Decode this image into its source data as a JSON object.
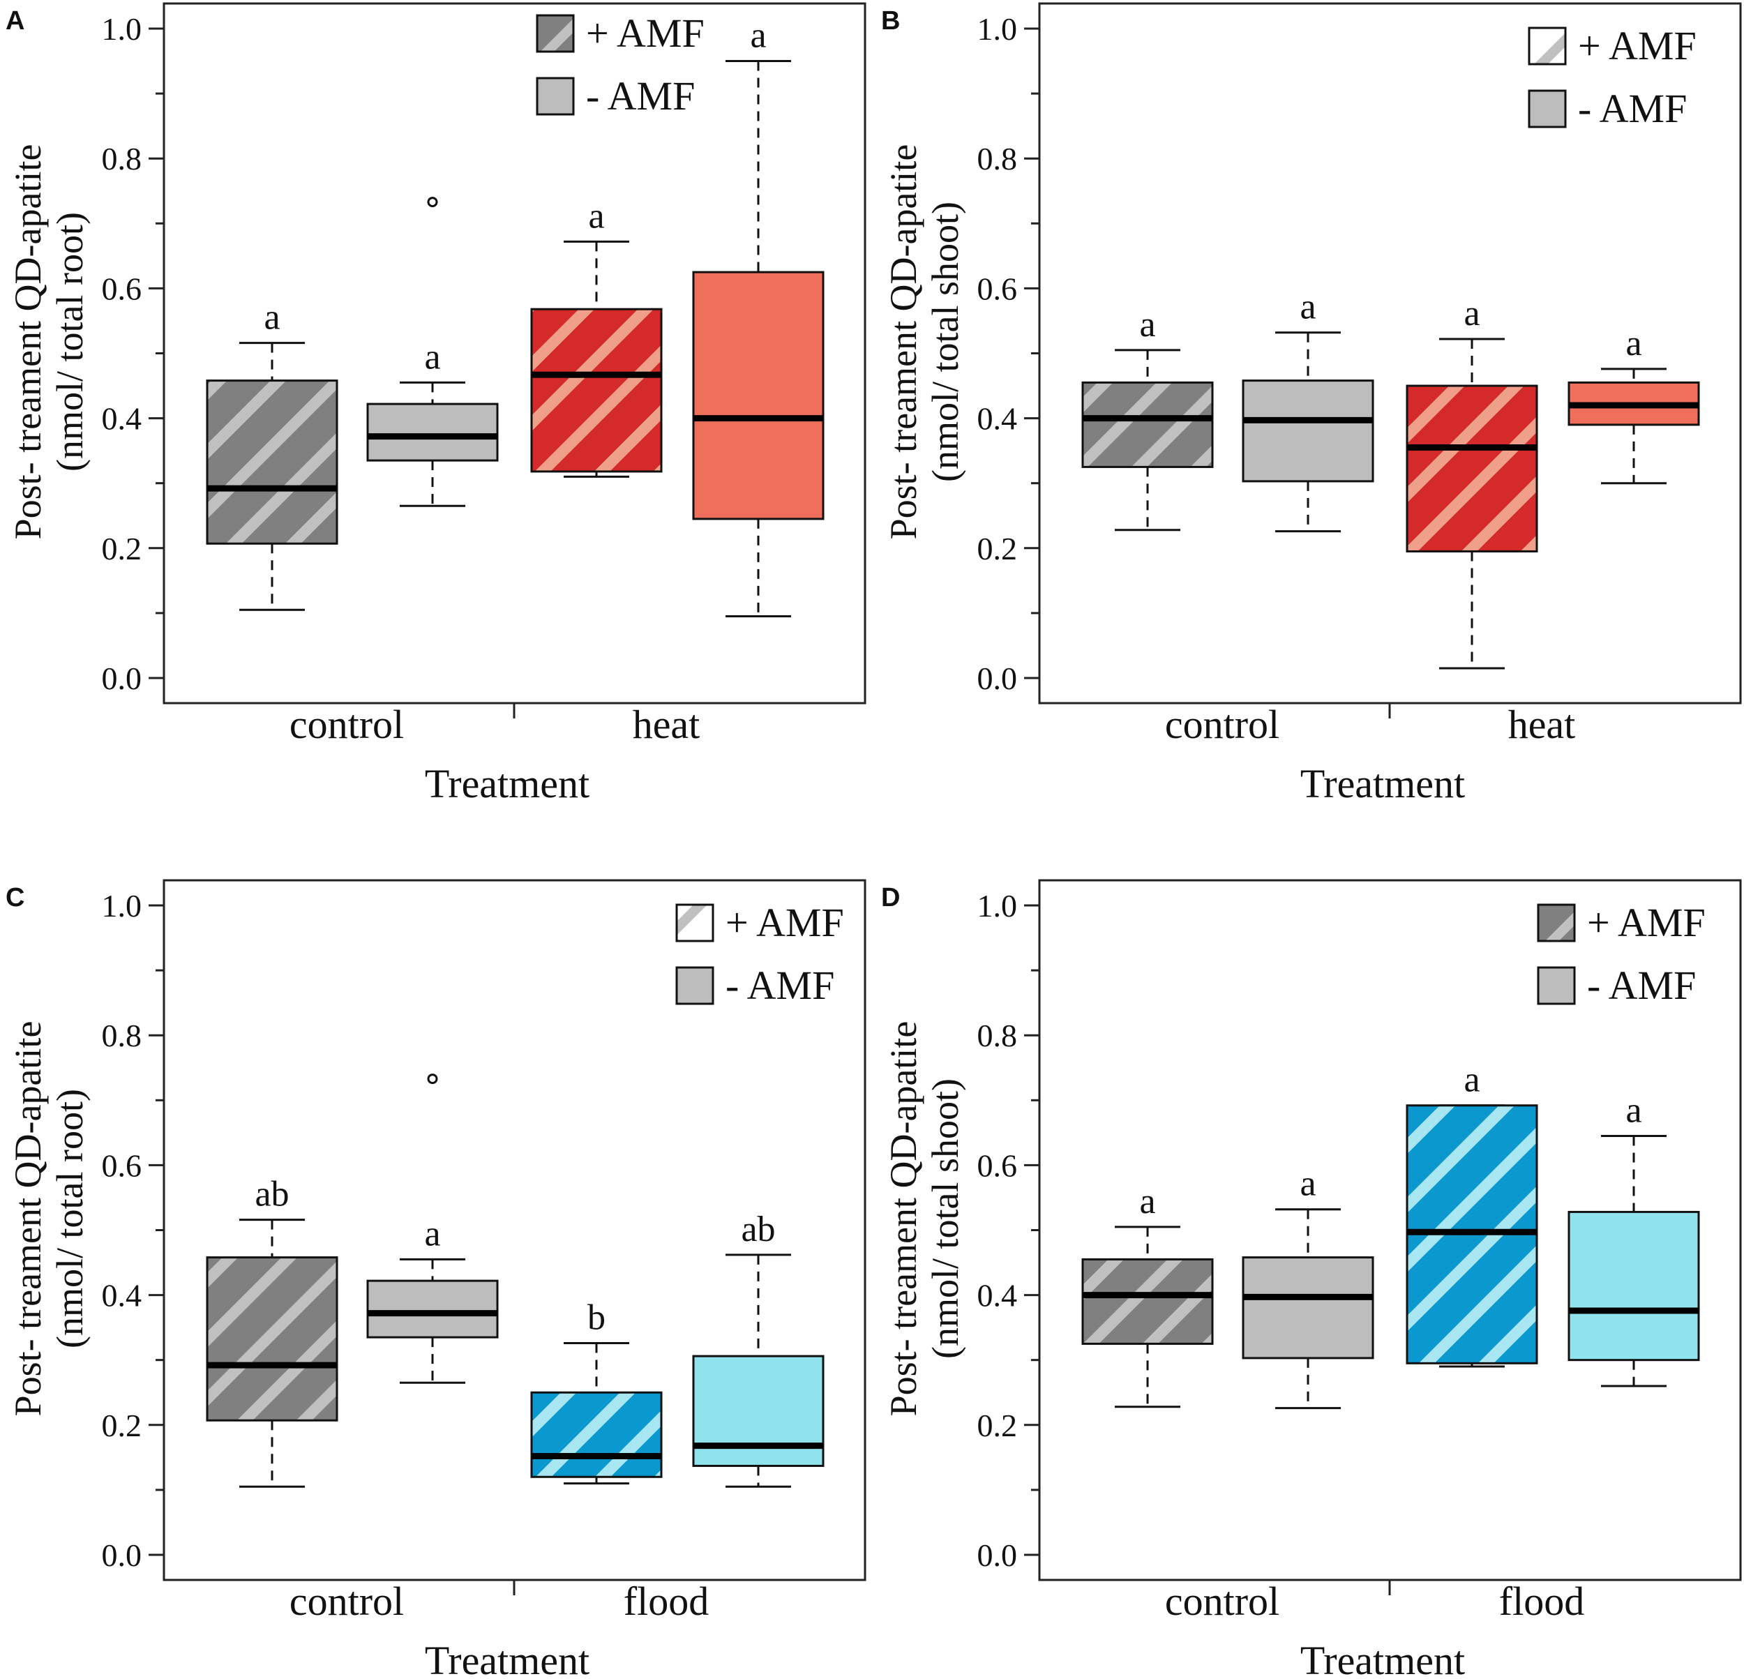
{
  "colors": {
    "control_amf": "#808080",
    "control_amf_stripe": "#c0c0c0",
    "control_noamf": "#bdbdbd",
    "heat_amf": "#d42a2a",
    "heat_amf_stripe": "#f0a08a",
    "heat_noamf": "#ef6f5a",
    "flood_amf": "#0a98cf",
    "flood_amf_stripe": "#a8e6f2",
    "flood_noamf": "#90e2ec"
  },
  "chart_data": [
    {
      "panel": "A",
      "type": "box",
      "xlabel": "Treatment",
      "ylabel_line1": "Post- treament QD-apatite",
      "ylabel_line2": "(nmol/ total root)",
      "ylim": [
        0,
        1.0
      ],
      "yticks": [
        "0.0",
        "0.2",
        "0.4",
        "0.6",
        "0.8",
        "1.0"
      ],
      "categories": [
        "control",
        "heat"
      ],
      "legend": {
        "position": "top-left",
        "swatch": "dark",
        "items": [
          "+ AMF",
          "- AMF"
        ]
      },
      "boxes": [
        {
          "group": "control",
          "amf": "+ AMF",
          "whisker_low": 0.105,
          "q1": 0.207,
          "median": 0.292,
          "q3": 0.458,
          "whisker_high": 0.516,
          "outliers": [],
          "letter": "a",
          "fill": "control_amf",
          "stripe": "control_amf_stripe",
          "hatched": true
        },
        {
          "group": "control",
          "amf": "- AMF",
          "whisker_low": 0.265,
          "q1": 0.335,
          "median": 0.372,
          "q3": 0.422,
          "whisker_high": 0.455,
          "outliers": [
            0.733
          ],
          "letter": "a",
          "fill": "control_noamf",
          "hatched": false
        },
        {
          "group": "heat",
          "amf": "+ AMF",
          "whisker_low": 0.31,
          "q1": 0.318,
          "median": 0.467,
          "q3": 0.568,
          "whisker_high": 0.672,
          "outliers": [],
          "letter": "a",
          "fill": "heat_amf",
          "stripe": "heat_amf_stripe",
          "hatched": true
        },
        {
          "group": "heat",
          "amf": "- AMF",
          "whisker_low": 0.095,
          "q1": 0.245,
          "median": 0.4,
          "q3": 0.625,
          "whisker_high": 0.95,
          "outliers": [],
          "letter": "a",
          "fill": "heat_noamf",
          "hatched": false
        }
      ]
    },
    {
      "panel": "B",
      "type": "box",
      "xlabel": "Treatment",
      "ylabel_line1": "Post- treament QD-apatite",
      "ylabel_line2": "(nmol/ total shoot)",
      "ylim": [
        0,
        1.0
      ],
      "yticks": [
        "0.0",
        "0.2",
        "0.4",
        "0.6",
        "0.8",
        "1.0"
      ],
      "categories": [
        "control",
        "heat"
      ],
      "legend": {
        "position": "top-right",
        "swatch": "light",
        "items": [
          "+ AMF",
          "- AMF"
        ]
      },
      "boxes": [
        {
          "group": "control",
          "amf": "+ AMF",
          "whisker_low": 0.228,
          "q1": 0.325,
          "median": 0.4,
          "q3": 0.455,
          "whisker_high": 0.505,
          "outliers": [],
          "letter": "a",
          "fill": "control_amf",
          "stripe": "control_amf_stripe",
          "hatched": true
        },
        {
          "group": "control",
          "amf": "- AMF",
          "whisker_low": 0.226,
          "q1": 0.303,
          "median": 0.397,
          "q3": 0.458,
          "whisker_high": 0.532,
          "outliers": [],
          "letter": "a",
          "fill": "control_noamf",
          "hatched": false
        },
        {
          "group": "heat",
          "amf": "+ AMF",
          "whisker_low": 0.015,
          "q1": 0.195,
          "median": 0.355,
          "q3": 0.45,
          "whisker_high": 0.522,
          "outliers": [],
          "letter": "a",
          "fill": "heat_amf",
          "stripe": "heat_amf_stripe",
          "hatched": true
        },
        {
          "group": "heat",
          "amf": "- AMF",
          "whisker_low": 0.3,
          "q1": 0.39,
          "median": 0.42,
          "q3": 0.455,
          "whisker_high": 0.476,
          "outliers": [],
          "letter": "a",
          "fill": "heat_noamf",
          "hatched": false
        }
      ]
    },
    {
      "panel": "C",
      "type": "box",
      "xlabel": "Treatment",
      "ylabel_line1": "Post- treament QD-apatite",
      "ylabel_line2": "(nmol/ total root)",
      "ylim": [
        0,
        1.0
      ],
      "yticks": [
        "0.0",
        "0.2",
        "0.4",
        "0.6",
        "0.8",
        "1.0"
      ],
      "categories": [
        "control",
        "flood"
      ],
      "legend": {
        "position": "top-right",
        "swatch": "light",
        "items": [
          "+ AMF",
          "- AMF"
        ]
      },
      "boxes": [
        {
          "group": "control",
          "amf": "+ AMF",
          "whisker_low": 0.105,
          "q1": 0.207,
          "median": 0.292,
          "q3": 0.458,
          "whisker_high": 0.516,
          "outliers": [],
          "letter": "ab",
          "fill": "control_amf",
          "stripe": "control_amf_stripe",
          "hatched": true
        },
        {
          "group": "control",
          "amf": "- AMF",
          "whisker_low": 0.265,
          "q1": 0.335,
          "median": 0.372,
          "q3": 0.422,
          "whisker_high": 0.455,
          "outliers": [
            0.733
          ],
          "letter": "a",
          "fill": "control_noamf",
          "hatched": false
        },
        {
          "group": "flood",
          "amf": "+ AMF",
          "whisker_low": 0.11,
          "q1": 0.12,
          "median": 0.152,
          "q3": 0.25,
          "whisker_high": 0.326,
          "outliers": [],
          "letter": "b",
          "fill": "flood_amf",
          "stripe": "flood_amf_stripe",
          "hatched": true
        },
        {
          "group": "flood",
          "amf": "- AMF",
          "whisker_low": 0.105,
          "q1": 0.137,
          "median": 0.168,
          "q3": 0.306,
          "whisker_high": 0.462,
          "outliers": [],
          "letter": "ab",
          "fill": "flood_noamf",
          "hatched": false
        }
      ]
    },
    {
      "panel": "D",
      "type": "box",
      "xlabel": "Treatment",
      "ylabel_line1": "Post- treament QD-apatite",
      "ylabel_line2": "(nmol/ total shoot)",
      "ylim": [
        0,
        1.0
      ],
      "yticks": [
        "0.0",
        "0.2",
        "0.4",
        "0.6",
        "0.8",
        "1.0"
      ],
      "categories": [
        "control",
        "flood"
      ],
      "legend": {
        "position": "top-right",
        "swatch": "dark",
        "items": [
          "+ AMF",
          "- AMF"
        ]
      },
      "boxes": [
        {
          "group": "control",
          "amf": "+ AMF",
          "whisker_low": 0.228,
          "q1": 0.325,
          "median": 0.4,
          "q3": 0.455,
          "whisker_high": 0.505,
          "outliers": [],
          "letter": "a",
          "fill": "control_amf",
          "stripe": "control_amf_stripe",
          "hatched": true
        },
        {
          "group": "control",
          "amf": "- AMF",
          "whisker_low": 0.226,
          "q1": 0.303,
          "median": 0.397,
          "q3": 0.458,
          "whisker_high": 0.532,
          "outliers": [],
          "letter": "a",
          "fill": "control_noamf",
          "hatched": false
        },
        {
          "group": "flood",
          "amf": "+ AMF",
          "whisker_low": 0.29,
          "q1": 0.295,
          "median": 0.497,
          "q3": 0.692,
          "whisker_high": 0.692,
          "outliers": [],
          "letter": "a",
          "fill": "flood_amf",
          "stripe": "flood_amf_stripe",
          "hatched": true
        },
        {
          "group": "flood",
          "amf": "- AMF",
          "whisker_low": 0.26,
          "q1": 0.3,
          "median": 0.376,
          "q3": 0.528,
          "whisker_high": 0.645,
          "outliers": [],
          "letter": "a",
          "fill": "flood_noamf",
          "hatched": false
        }
      ]
    }
  ]
}
